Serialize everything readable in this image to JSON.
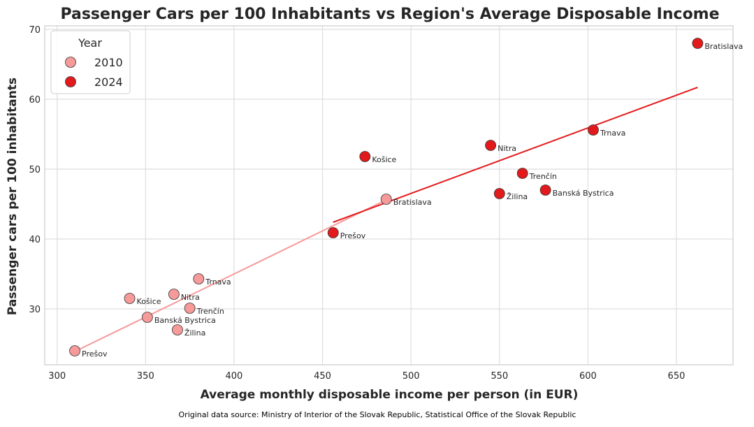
{
  "chart_data": {
    "type": "scatter",
    "title": "Passenger Cars per 100 Inhabitants vs Region's Average Disposable Income",
    "xlabel": "Average monthly disposable income per person (in EUR)",
    "ylabel": "Passenger cars per 100 inhabitants",
    "xlim": [
      293,
      682
    ],
    "ylim": [
      22,
      70.5
    ],
    "xticks": [
      300,
      350,
      400,
      450,
      500,
      550,
      600,
      650
    ],
    "yticks": [
      30,
      40,
      50,
      60,
      70
    ],
    "grid": true,
    "legend": {
      "title": "Year",
      "placement": "top-left"
    },
    "series": [
      {
        "name": "2010",
        "color": "#f79a9a",
        "points": [
          {
            "label": "Prešov",
            "x": 310,
            "y": 24.0
          },
          {
            "label": "Košice",
            "x": 341,
            "y": 31.5
          },
          {
            "label": "Banská Bystrica",
            "x": 351,
            "y": 28.8
          },
          {
            "label": "Nitra",
            "x": 366,
            "y": 32.1
          },
          {
            "label": "Žilina",
            "x": 368,
            "y": 27.0
          },
          {
            "label": "Trenčín",
            "x": 375,
            "y": 30.1
          },
          {
            "label": "Trnava",
            "x": 380,
            "y": 34.3
          },
          {
            "label": "Bratislava",
            "x": 486,
            "y": 45.7
          }
        ],
        "trend": {
          "x": [
            310,
            486
          ],
          "y": [
            23.9,
            45.6
          ]
        }
      },
      {
        "name": "2024",
        "color": "#e31a1c",
        "points": [
          {
            "label": "Prešov",
            "x": 456,
            "y": 40.9
          },
          {
            "label": "Košice",
            "x": 474,
            "y": 51.8
          },
          {
            "label": "Nitra",
            "x": 545,
            "y": 53.4
          },
          {
            "label": "Žilina",
            "x": 550,
            "y": 46.5
          },
          {
            "label": "Trenčín",
            "x": 563,
            "y": 49.4
          },
          {
            "label": "Banská Bystrica",
            "x": 576,
            "y": 47.0
          },
          {
            "label": "Trnava",
            "x": 603,
            "y": 55.6
          },
          {
            "label": "Bratislava",
            "x": 662,
            "y": 68.0
          }
        ],
        "trend": {
          "x": [
            456,
            662
          ],
          "y": [
            42.4,
            61.7
          ]
        }
      }
    ],
    "source": "Original data source: Ministry of Interior of the Slovak Republic, Statistical Office of the Slovak Republic"
  }
}
